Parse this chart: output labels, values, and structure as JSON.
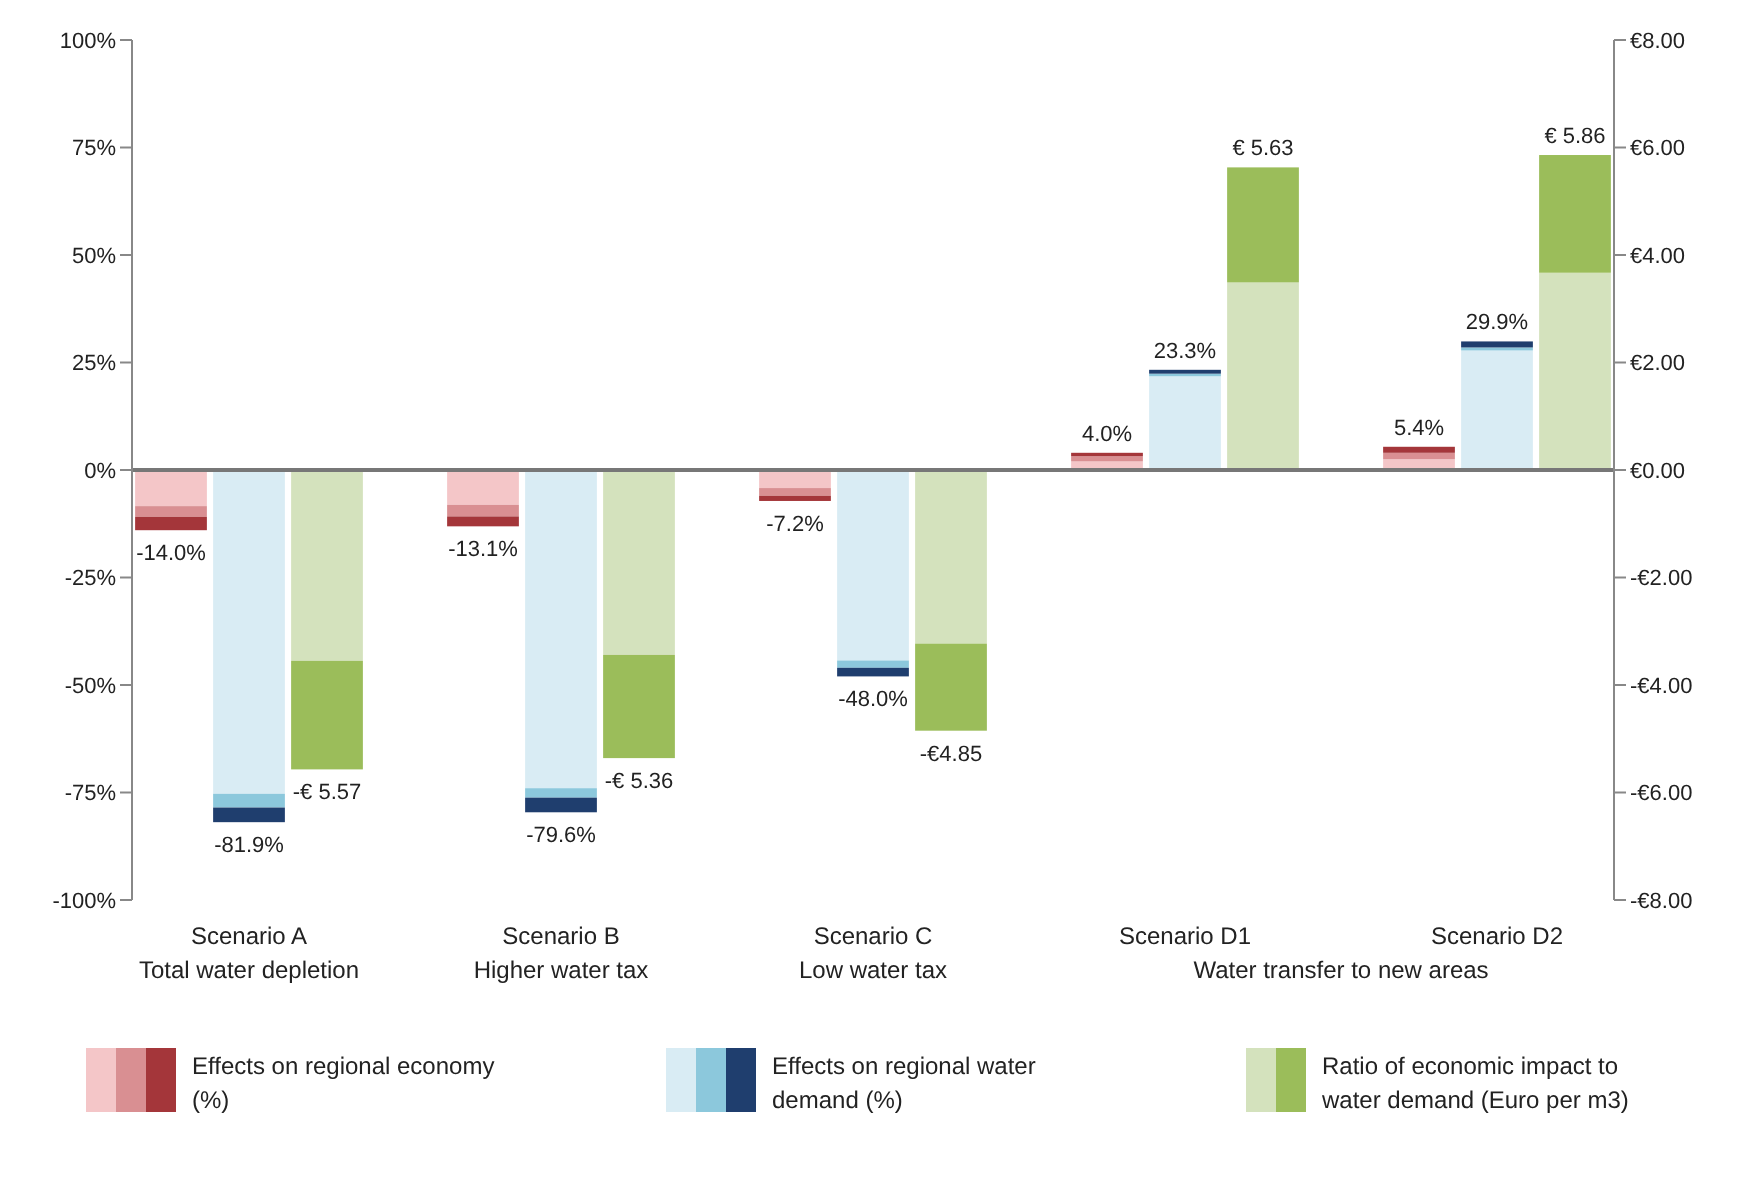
{
  "chart_data": {
    "type": "bar",
    "stacked": true,
    "categories": [
      null,
      "Scenario A\nTotal water depletion",
      null,
      null,
      null,
      "Scenario B\nHigher water tax",
      null,
      null,
      null,
      "Scenario C\nLow water tax",
      null,
      null,
      null,
      "Scenario D1",
      null,
      null,
      null,
      "Scenario D2",
      null
    ],
    "annotations": [
      "Water transfer to new areas",
      "Effects on regional economy (%)",
      "Effects on regional water demand (%)",
      "Ratio of economic impact to water demand (Euro per m3)",
      "-€ 5.57",
      "-€ 5.36",
      "-€4.85",
      "€ 5.63",
      "€ 5.86"
    ],
    "series": [
      {
        "colors": [
          "#f4c6c8",
          "#d9ecf4",
          null,
          null,
          "#f4c6c8",
          "#d9ecf4",
          null,
          null,
          "#f4c6c8",
          "#d9ecf4",
          null,
          null,
          "#f4c6c8",
          "#d9ecf4",
          null,
          null,
          "#f4c6c8",
          "#d9ecf4",
          null
        ],
        "values": [
          -8.4,
          -75.3,
          null,
          null,
          -8.1,
          -74.0,
          null,
          null,
          -4.2,
          -44.3,
          null,
          null,
          2.0,
          21.8,
          null,
          null,
          2.5,
          27.8,
          null
        ]
      },
      {
        "colors": [
          "#d98f92",
          "#8cc8dc",
          null,
          null,
          "#d98f92",
          "#8cc8dc",
          null,
          null,
          "#d98f92",
          "#8cc8dc",
          null,
          null,
          "#d98f92",
          "#8cc8dc",
          null,
          null,
          "#d98f92",
          "#8cc8dc",
          null
        ],
        "values": [
          -2.5,
          -3.2,
          null,
          null,
          -2.7,
          -2.2,
          null,
          null,
          -1.8,
          -1.7,
          null,
          null,
          1.2,
          0.6,
          null,
          null,
          1.5,
          0.7,
          null
        ]
      },
      {
        "colors": [
          "#a4363a",
          "#1f3e6e",
          null,
          null,
          "#a4363a",
          "#1f3e6e",
          null,
          null,
          "#a4363a",
          "#1f3e6e",
          null,
          null,
          "#a4363a",
          "#1f3e6e",
          null,
          null,
          "#a4363a",
          "#1f3e6e",
          null
        ],
        "values": [
          -3.1,
          -3.4,
          null,
          null,
          -2.3,
          -3.4,
          null,
          null,
          -1.2,
          -2.0,
          null,
          null,
          0.8,
          0.9,
          null,
          null,
          1.4,
          1.4,
          null
        ]
      },
      {
        "color": "#d4e2bd",
        "axis": "y2",
        "values": [
          null,
          null,
          -3.55,
          null,
          null,
          null,
          -3.44,
          null,
          null,
          null,
          -3.23,
          null,
          null,
          null,
          3.49,
          null,
          null,
          null,
          3.67
        ]
      },
      {
        "color": "#9bbd5a",
        "axis": "y2",
        "values": [
          null,
          null,
          -2.02,
          null,
          null,
          null,
          -1.92,
          null,
          null,
          null,
          -1.62,
          null,
          null,
          null,
          2.14,
          null,
          null,
          null,
          2.19
        ]
      }
    ],
    "totals": [
      "-14.0%",
      "-81.9%",
      null,
      null,
      "-13.1%",
      "-79.6%",
      null,
      null,
      "-7.2%",
      "-48.0%",
      null,
      null,
      "4.0%",
      "23.3%",
      null,
      null,
      "5.4%",
      "29.9%",
      null
    ],
    "ylim": [
      -100,
      100
    ],
    "yticks": [
      {
        "value": -100,
        "label": "-100%"
      },
      {
        "value": -75,
        "label": "-75%"
      },
      {
        "value": -50,
        "label": "-50%"
      },
      {
        "value": -25,
        "label": "-25%"
      },
      {
        "value": 0,
        "label": "0%"
      },
      {
        "value": 25,
        "label": "25%"
      },
      {
        "value": 50,
        "label": "50%"
      },
      {
        "value": 75,
        "label": "75%"
      },
      {
        "value": 100,
        "label": "100%"
      }
    ],
    "y2lim": [
      -8,
      8
    ],
    "y2ticks": [
      {
        "value": -8,
        "label": "-€8.00"
      },
      {
        "value": -6,
        "label": "-€6.00"
      },
      {
        "value": -4,
        "label": "-€4.00"
      },
      {
        "value": -2,
        "label": "-€2.00"
      },
      {
        "value": 0,
        "label": "€0.00"
      },
      {
        "value": 2,
        "label": "€2.00"
      },
      {
        "value": 4,
        "label": "€4.00"
      },
      {
        "value": 6,
        "label": "€6.00"
      },
      {
        "value": 8,
        "label": "€8.00"
      }
    ],
    "ref_lines": [
      {
        "axis": "y",
        "value": 0,
        "color": "#777777"
      }
    ],
    "grid": false
  }
}
